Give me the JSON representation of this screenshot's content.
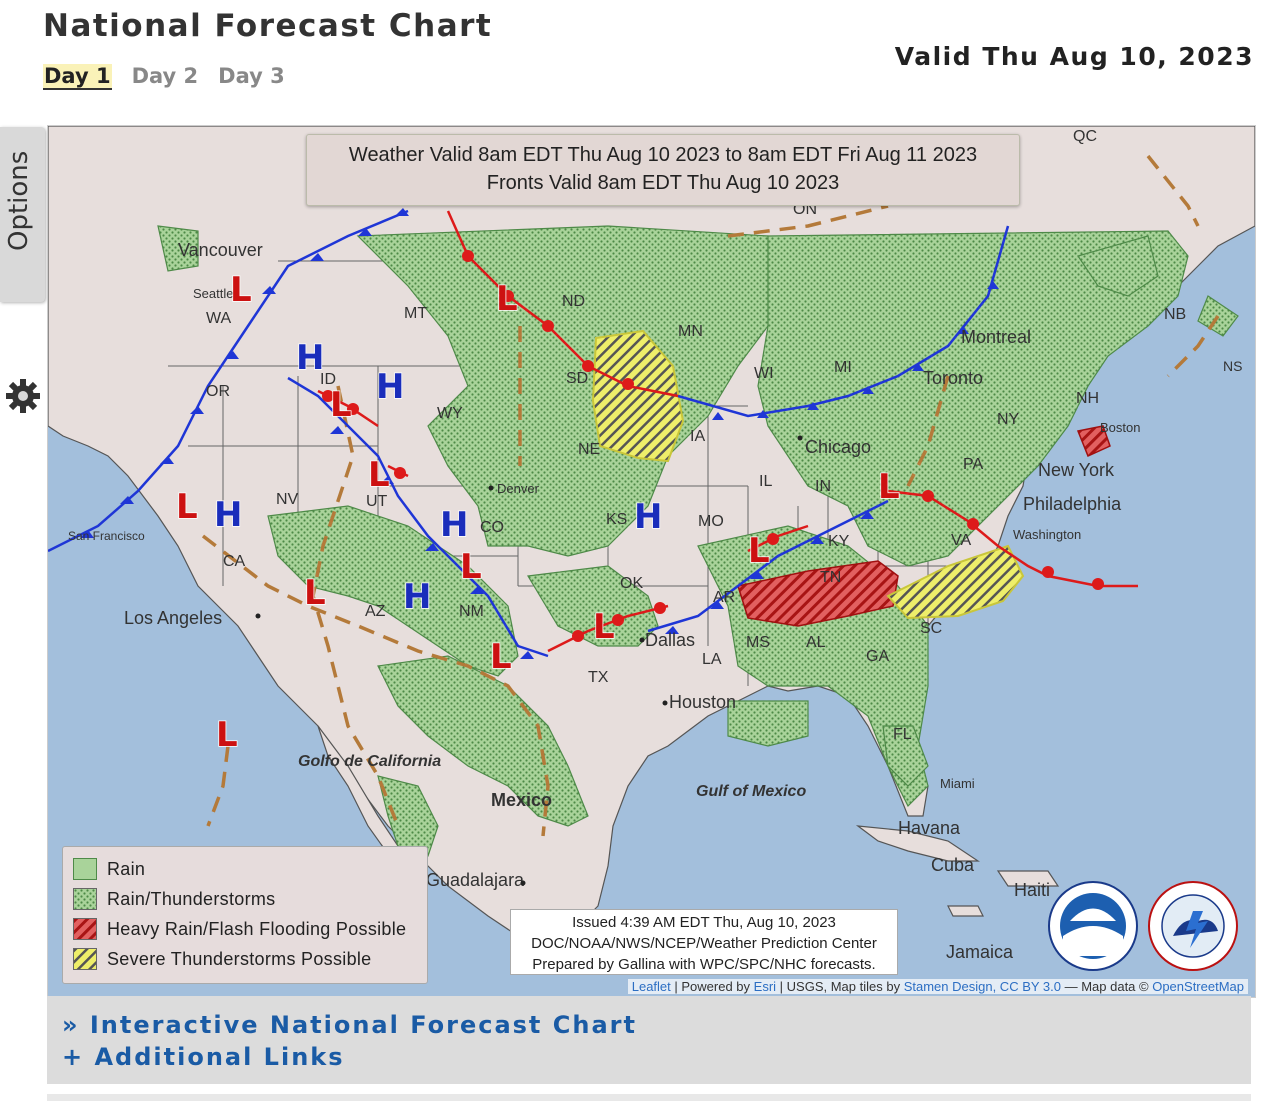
{
  "page": {
    "title": "National Forecast Chart",
    "valid_date": "Valid Thu Aug 10, 2023",
    "tabs": [
      {
        "label": "Day 1",
        "active": true
      },
      {
        "label": "Day 2",
        "active": false
      },
      {
        "label": "Day 3",
        "active": false
      }
    ],
    "options_label": "Options"
  },
  "map": {
    "valid_line1": "Weather Valid 8am EDT Thu Aug 10 2023 to 8am EDT Fri Aug 11 2023",
    "valid_line2": "Fronts Valid 8am EDT Thu Aug 10 2023",
    "legend": {
      "rain": "Rain",
      "rain_tstorms": "Rain/Thunderstorms",
      "heavy_rain": "Heavy Rain/Flash Flooding Possible",
      "severe": "Severe Thunderstorms Possible"
    },
    "issued": {
      "line1": "Issued 4:39 AM EDT Thu, Aug 10, 2023",
      "line2": "DOC/NOAA/NWS/NCEP/Weather Prediction Center",
      "line3": "Prepared by Gallina with WPC/SPC/NHC forecasts."
    },
    "attribution": {
      "leaflet": "Leaflet",
      "powered": " | Powered by ",
      "esri": "Esri",
      "rest": " | USGS, Map tiles by ",
      "stamen": "Stamen Design",
      "cc": ", CC BY 3.0",
      "data": " — Map data © ",
      "osm": "OpenStreetMap"
    },
    "pressure_centers": [
      {
        "type": "L",
        "name": "low-wa"
      },
      {
        "type": "L",
        "name": "low-id"
      },
      {
        "type": "L",
        "name": "low-ut"
      },
      {
        "type": "L",
        "name": "low-nd"
      },
      {
        "type": "L",
        "name": "low-ca"
      },
      {
        "type": "L",
        "name": "low-az"
      },
      {
        "type": "L",
        "name": "low-nm"
      },
      {
        "type": "L",
        "name": "low-tx-west"
      },
      {
        "type": "L",
        "name": "low-tx"
      },
      {
        "type": "L",
        "name": "low-ky"
      },
      {
        "type": "L",
        "name": "low-oh"
      },
      {
        "type": "L",
        "name": "low-pacific"
      },
      {
        "type": "H",
        "name": "high-id"
      },
      {
        "type": "H",
        "name": "high-mt"
      },
      {
        "type": "H",
        "name": "high-nv"
      },
      {
        "type": "H",
        "name": "high-co"
      },
      {
        "type": "H",
        "name": "high-az"
      },
      {
        "type": "H",
        "name": "high-ks"
      }
    ],
    "place_labels": [
      "Vancouver",
      "Seattle",
      "WA",
      "OR",
      "MT",
      "ID",
      "WY",
      "ND",
      "SD",
      "MN",
      "WI",
      "MI",
      "IA",
      "NE",
      "Denver",
      "CO",
      "UT",
      "NV",
      "CA",
      "San Francisco",
      "Los Angeles",
      "AZ",
      "NM",
      "KS",
      "MO",
      "IL",
      "IN",
      "OK",
      "TX",
      "Dallas",
      "Houston",
      "LA",
      "AR",
      "MS",
      "AL",
      "GA",
      "TN",
      "KY",
      "VA",
      "PA",
      "NY",
      "NH",
      "NB",
      "Montreal",
      "Toronto",
      "Chicago",
      "New York",
      "Philadelphia",
      "Washington",
      "Boston",
      "SC",
      "FL",
      "Miami",
      "Havana",
      "Cuba",
      "Jamaica",
      "Haiti",
      "Mexico",
      "Golfo de California",
      "Gulf of Mexico",
      "Guadalajara",
      "QC",
      "ON",
      "NS"
    ]
  },
  "footer": {
    "link1": "» Interactive National Forecast Chart",
    "link2": "+ Additional Links"
  },
  "colors": {
    "low": "#cc1111",
    "high": "#1a2dbb",
    "rain": "#8fc98a",
    "heavy": "#d43a3a",
    "severe": "#e8e85a",
    "water": "#a3bfdc",
    "land": "#e7dedc",
    "link": "#1a5ba5"
  }
}
